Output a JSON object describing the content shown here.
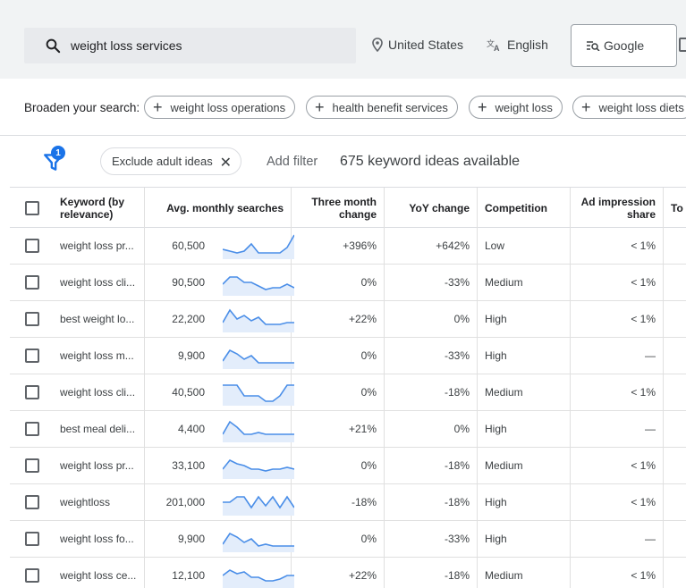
{
  "search": {
    "value": "weight loss services",
    "location": "United States",
    "language": "English",
    "network": "Google"
  },
  "broaden": {
    "label": "Broaden your search:",
    "chips": [
      "weight loss operations",
      "health benefit services",
      "weight loss",
      "weight loss diets"
    ]
  },
  "filters": {
    "filter_count": "1",
    "exclude_chip": "Exclude adult ideas",
    "add_filter": "Add filter",
    "ideas_count": "675 keyword ideas available"
  },
  "table": {
    "columns": {
      "keyword": "Keyword (by relevance)",
      "avg_searches": "Avg. monthly searches",
      "three_month": "Three month change",
      "yoy": "YoY change",
      "competition": "Competition",
      "ad_impression": "Ad impression share",
      "top_of_page": "To"
    },
    "rows": [
      {
        "keyword": "weight loss pr...",
        "searches": "60,500",
        "three_month": "+396%",
        "yoy": "+642%",
        "competition": "Low",
        "ad_share": "< 1%",
        "trend": [
          4,
          3,
          2,
          3,
          7,
          2,
          2,
          2,
          2,
          5,
          12
        ]
      },
      {
        "keyword": "weight loss cli...",
        "searches": "90,500",
        "three_month": "0%",
        "yoy": "-33%",
        "competition": "Medium",
        "ad_share": "< 1%",
        "trend": [
          5,
          9,
          9,
          6,
          6,
          4,
          2,
          3,
          3,
          5,
          3
        ]
      },
      {
        "keyword": "best weight lo...",
        "searches": "22,200",
        "three_month": "+22%",
        "yoy": "0%",
        "competition": "High",
        "ad_share": "< 1%",
        "trend": [
          4,
          11,
          6,
          8,
          5,
          7,
          3,
          3,
          3,
          4,
          4
        ]
      },
      {
        "keyword": "weight loss m...",
        "searches": "9,900",
        "three_month": "0%",
        "yoy": "-33%",
        "competition": "High",
        "ad_share": "—",
        "trend": [
          3,
          9,
          7,
          4,
          6,
          2,
          2,
          2,
          2,
          2,
          2
        ]
      },
      {
        "keyword": "weight loss cli...",
        "searches": "40,500",
        "three_month": "0%",
        "yoy": "-18%",
        "competition": "Medium",
        "ad_share": "< 1%",
        "trend": [
          10,
          10,
          10,
          4,
          4,
          4,
          1,
          1,
          4,
          10,
          10
        ]
      },
      {
        "keyword": "best meal deli...",
        "searches": "4,400",
        "three_month": "+21%",
        "yoy": "0%",
        "competition": "High",
        "ad_share": "—",
        "trend": [
          3,
          10,
          7,
          3,
          3,
          4,
          3,
          3,
          3,
          3,
          3
        ]
      },
      {
        "keyword": "weight loss pr...",
        "searches": "33,100",
        "three_month": "0%",
        "yoy": "-18%",
        "competition": "Medium",
        "ad_share": "< 1%",
        "trend": [
          4,
          9,
          7,
          6,
          4,
          4,
          3,
          4,
          4,
          5,
          4
        ]
      },
      {
        "keyword": "weightloss",
        "searches": "201,000",
        "three_month": "-18%",
        "yoy": "-18%",
        "competition": "High",
        "ad_share": "< 1%",
        "trend": [
          6,
          6,
          9,
          9,
          3,
          9,
          4,
          9,
          3,
          9,
          3
        ]
      },
      {
        "keyword": "weight loss fo...",
        "searches": "9,900",
        "three_month": "0%",
        "yoy": "-33%",
        "competition": "High",
        "ad_share": "—",
        "trend": [
          3,
          9,
          7,
          4,
          6,
          2,
          3,
          2,
          2,
          2,
          2
        ]
      },
      {
        "keyword": "weight loss ce...",
        "searches": "12,100",
        "three_month": "+22%",
        "yoy": "-18%",
        "competition": "Medium",
        "ad_share": "< 1%",
        "trend": [
          6,
          9,
          7,
          8,
          5,
          5,
          3,
          3,
          4,
          6,
          6
        ]
      }
    ]
  },
  "colors": {
    "accent": "#1a73e8",
    "sparkline": "#4a8ee8",
    "sparkfill": "#e3edfb"
  }
}
